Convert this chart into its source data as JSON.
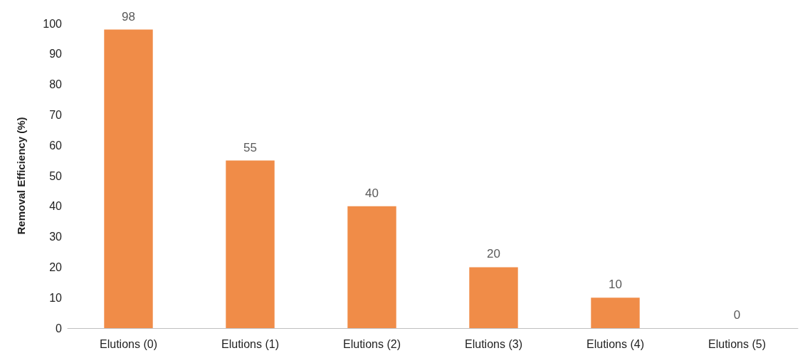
{
  "chart_data": {
    "type": "bar",
    "ylabel": "Removal Efficiency (%)",
    "categories": [
      "Elutions (0)",
      "Elutions (1)",
      "Elutions (2)",
      "Elutions (3)",
      "Elutions (4)",
      "Elutions (5)"
    ],
    "values": [
      98,
      55,
      40,
      20,
      10,
      0
    ],
    "color": "#f08c48",
    "ylim": [
      0,
      100
    ],
    "yticks": [
      0,
      10,
      20,
      30,
      40,
      50,
      60,
      70,
      80,
      90,
      100
    ],
    "grid": false,
    "data_labels": true
  }
}
